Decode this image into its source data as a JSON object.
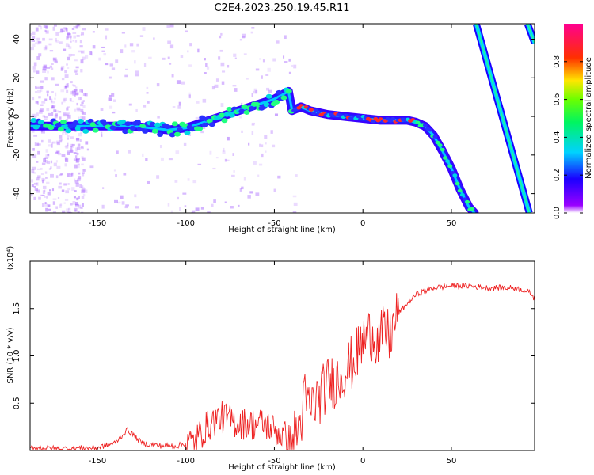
{
  "figure": {
    "title": "C2E4.2023.250.19.45.R11"
  },
  "chart_data": [
    {
      "type": "heatmap",
      "title": "C2E4.2023.250.19.45.R11",
      "xlabel": "Height of straight line (km)",
      "ylabel": "Frequency (Hz)",
      "xlim": [
        -188,
        97
      ],
      "ylim": [
        -50,
        48
      ],
      "xticks": [
        -150,
        -100,
        -50,
        0,
        50
      ],
      "yticks": [
        -40,
        -20,
        0,
        20,
        40
      ],
      "xtick_labels": [
        "-150",
        "-100",
        "-50",
        "0",
        "50"
      ],
      "ytick_labels": [
        "-40",
        "-20",
        "0",
        "20",
        "40"
      ],
      "colorbar": {
        "label": "Normalized spectral amplitude",
        "range": [
          0,
          1
        ],
        "ticks": [
          0.0,
          0.2,
          0.4,
          0.6,
          0.8
        ],
        "tick_labels": [
          "0.0",
          "0.2",
          "0.4",
          "0.6",
          "0.8"
        ]
      },
      "main_trace": {
        "x": [
          -188,
          -170,
          -150,
          -130,
          -110,
          -100,
          -90,
          -80,
          -70,
          -60,
          -50,
          -42,
          -40,
          -35,
          -30,
          -20,
          -10,
          0,
          10,
          20,
          25,
          30,
          35,
          40,
          45,
          50,
          55,
          60,
          63
        ],
        "y": [
          -5,
          -5,
          -5,
          -5,
          -7,
          -6,
          -3,
          0,
          3,
          6,
          9,
          13,
          3,
          5,
          3,
          1,
          0,
          -1,
          -2,
          -2,
          -2,
          -3,
          -5,
          -10,
          -18,
          -27,
          -38,
          -47,
          -50
        ]
      },
      "right_line": {
        "x": [
          64,
          94
        ],
        "y": [
          48,
          -50
        ]
      },
      "right_line_top": {
        "x": [
          93,
          97
        ],
        "y": [
          48,
          38
        ]
      }
    },
    {
      "type": "line",
      "xlabel": "Height of straight line (km)",
      "ylabel": "SNR (10 * v/v)",
      "multiplier": "(x10⁴)",
      "xlim": [
        -188,
        97
      ],
      "ylim": [
        0,
        2
      ],
      "xticks": [
        -150,
        -100,
        -50,
        0,
        50
      ],
      "yticks": [
        0.5,
        1.0,
        1.5
      ],
      "xtick_labels": [
        "-150",
        "-100",
        "-50",
        "0",
        "50"
      ],
      "ytick_labels": [
        "0.5",
        "1.0",
        "1.5"
      ],
      "series": [
        {
          "name": "SNR",
          "color": "#ee2222",
          "x": [
            -188,
            -170,
            -150,
            -140,
            -133,
            -125,
            -115,
            -105,
            -95,
            -88,
            -83,
            -79,
            -72,
            -65,
            -55,
            -47,
            -40,
            -35,
            -33,
            -30,
            -25,
            -20,
            -15,
            -10,
            -5,
            0,
            5,
            9,
            12,
            15,
            20,
            25,
            30,
            40,
            50,
            60,
            70,
            80,
            85,
            90,
            95,
            97
          ],
          "y": [
            0.03,
            0.02,
            0.03,
            0.08,
            0.22,
            0.08,
            0.05,
            0.05,
            0.1,
            0.25,
            0.33,
            0.35,
            0.3,
            0.28,
            0.28,
            0.18,
            0.1,
            0.3,
            0.55,
            0.45,
            0.55,
            0.7,
            0.75,
            0.85,
            0.95,
            1.15,
            1.25,
            1.15,
            1.25,
            1.2,
            1.45,
            1.55,
            1.65,
            1.72,
            1.74,
            1.74,
            1.72,
            1.72,
            1.72,
            1.7,
            1.66,
            1.6
          ]
        }
      ]
    }
  ]
}
